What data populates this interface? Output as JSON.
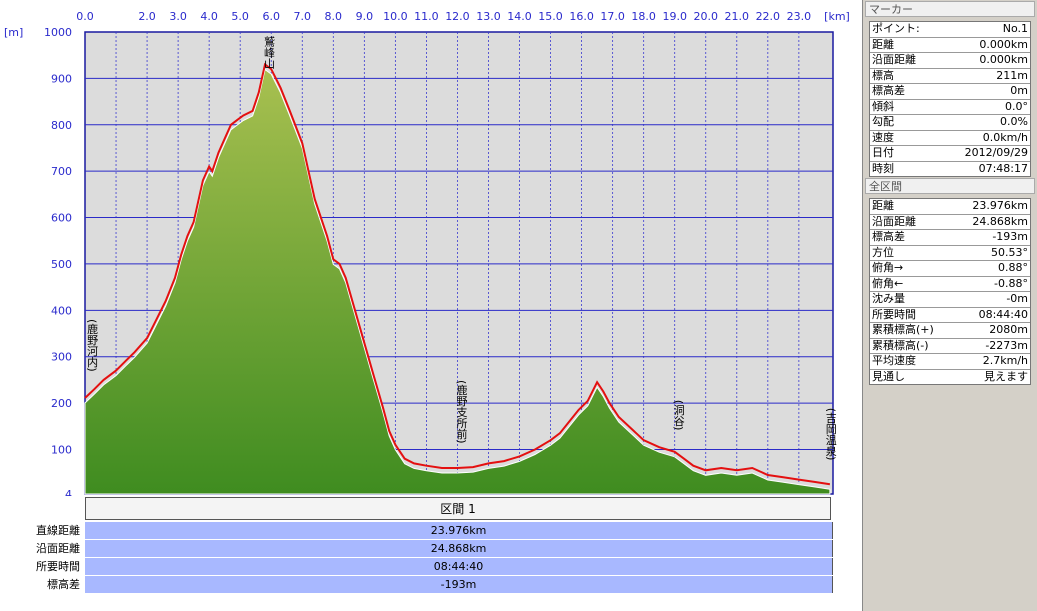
{
  "chart_data": {
    "type": "area",
    "title": "",
    "xlabel": "",
    "ylabel": "",
    "x_unit": "[km]",
    "y_unit": "[m]",
    "xlim": [
      0,
      24.1
    ],
    "ylim": [
      4,
      1000
    ],
    "x_ticks": [
      "0.0",
      "2.0",
      "3.0",
      "4.0",
      "5.0",
      "6.0",
      "7.0",
      "8.0",
      "9.0",
      "10.0",
      "11.0",
      "12.0",
      "13.0",
      "14.0",
      "15.0",
      "16.0",
      "17.0",
      "18.0",
      "19.0",
      "20.0",
      "21.0",
      "22.0",
      "23.0"
    ],
    "y_ticks": [
      "1000",
      "900",
      "800",
      "700",
      "600",
      "500",
      "400",
      "300",
      "200",
      "100",
      "4"
    ],
    "grid": true,
    "series": [
      {
        "color": "#e41010",
        "x": [
          0,
          0.3,
          0.6,
          1.0,
          1.3,
          1.6,
          2.0,
          2.3,
          2.6,
          2.9,
          3.1,
          3.3,
          3.5,
          3.6,
          3.8,
          4.0,
          4.1,
          4.3,
          4.5,
          4.7,
          4.9,
          5.1,
          5.4,
          5.6,
          5.8,
          6.0,
          6.3,
          6.6,
          7.0,
          7.4,
          7.8,
          8.0,
          8.2,
          8.4,
          8.7,
          9.0,
          9.3,
          9.6,
          9.8,
          10.0,
          10.3,
          10.6,
          11.0,
          11.5,
          12.0,
          12.5,
          13.0,
          13.5,
          14.0,
          14.5,
          15.0,
          15.3,
          15.6,
          15.9,
          16.2,
          16.5,
          16.7,
          16.9,
          17.2,
          17.6,
          18.0,
          18.5,
          19.0,
          19.3,
          19.6,
          20.0,
          20.5,
          21.0,
          21.5,
          22.0,
          22.5,
          23.0,
          23.5,
          24.0
        ],
        "y": [
          211,
          230,
          250,
          270,
          290,
          310,
          340,
          380,
          420,
          470,
          520,
          560,
          590,
          620,
          680,
          710,
          700,
          740,
          770,
          800,
          810,
          820,
          830,
          870,
          930,
          920,
          880,
          830,
          760,
          640,
          560,
          510,
          500,
          470,
          400,
          330,
          260,
          190,
          140,
          110,
          80,
          70,
          65,
          60,
          60,
          62,
          70,
          75,
          85,
          100,
          120,
          135,
          160,
          185,
          205,
          245,
          225,
          200,
          170,
          145,
          120,
          105,
          95,
          80,
          65,
          55,
          60,
          55,
          60,
          45,
          40,
          35,
          30,
          25
        ]
      }
    ],
    "waypoints": [
      {
        "label": "(鹿野河内)",
        "x": 0.1
      },
      {
        "label": "鷲峰山",
        "x": 5.8
      },
      {
        "label": "(鹿野支所前)",
        "x": 12.0
      },
      {
        "label": "(洞谷)",
        "x": 19.0
      },
      {
        "label": "(吉岡温泉)",
        "x": 23.9
      }
    ]
  },
  "section": {
    "header": "区間 1",
    "rows": [
      {
        "label": "直線距離",
        "value": "23.976km"
      },
      {
        "label": "沿面距離",
        "value": "24.868km"
      },
      {
        "label": "所要時間",
        "value": "08:44:40"
      },
      {
        "label": "標高差",
        "value": "-193m"
      }
    ]
  },
  "marker_panel": {
    "title": "マーカー",
    "rows": [
      {
        "k": "ポイント:",
        "v": "No.1"
      },
      {
        "k": "距離",
        "v": "0.000km"
      },
      {
        "k": "沿面距離",
        "v": "0.000km"
      },
      {
        "k": "標高",
        "v": "211m"
      },
      {
        "k": "標高差",
        "v": "0m"
      },
      {
        "k": "傾斜",
        "v": "0.0°"
      },
      {
        "k": "勾配",
        "v": "0.0%"
      },
      {
        "k": "速度",
        "v": "0.0km/h"
      },
      {
        "k": "日付",
        "v": "2012/09/29"
      },
      {
        "k": "時刻",
        "v": "07:48:17"
      }
    ]
  },
  "total_panel": {
    "title": "全区間",
    "rows": [
      {
        "k": "距離",
        "v": "23.976km"
      },
      {
        "k": "沿面距離",
        "v": "24.868km"
      },
      {
        "k": "標高差",
        "v": "-193m"
      },
      {
        "k": "方位",
        "v": "50.53°"
      },
      {
        "k": "俯角→",
        "v": "0.88°"
      },
      {
        "k": "俯角←",
        "v": "-0.88°"
      },
      {
        "k": "沈み量",
        "v": "-0m"
      },
      {
        "k": "所要時間",
        "v": "08:44:40"
      },
      {
        "k": "累積標高(+)",
        "v": "2080m"
      },
      {
        "k": "累積標高(-)",
        "v": "-2273m"
      },
      {
        "k": "平均速度",
        "v": "2.7km/h"
      },
      {
        "k": "見通し",
        "v": "見えます"
      }
    ]
  }
}
